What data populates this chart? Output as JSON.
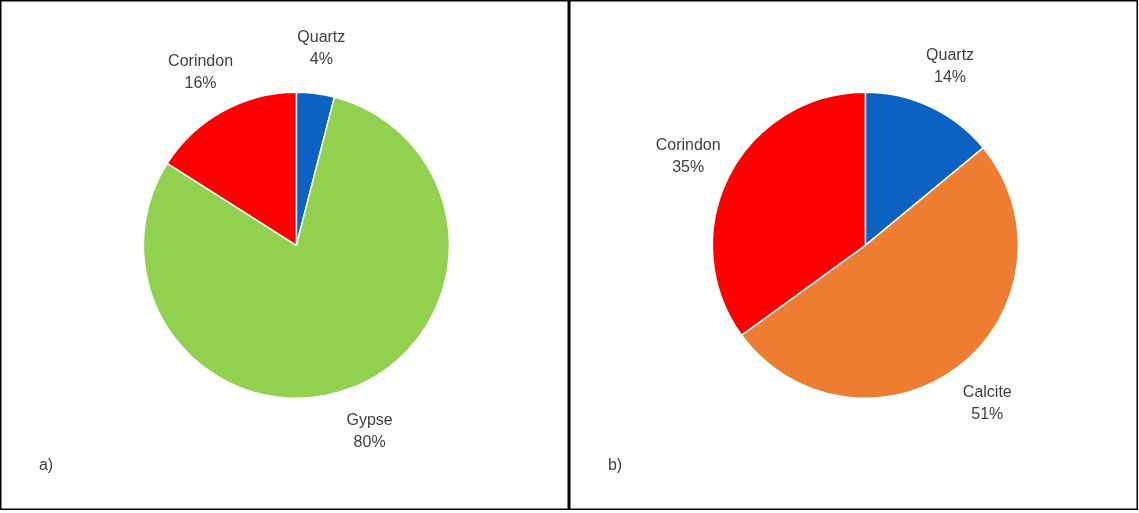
{
  "chart_data": [
    {
      "type": "pie",
      "categories": [
        "Quartz",
        "Gypse",
        "Corindon"
      ],
      "values": [
        4,
        80,
        16
      ],
      "colors": [
        "#0b62c1",
        "#92d050",
        "#ff0000"
      ],
      "value_labels": [
        "4%",
        "80%",
        "16%"
      ],
      "annotations": [
        "a)"
      ]
    },
    {
      "type": "pie",
      "categories": [
        "Quartz",
        "Calcite",
        "Corindon"
      ],
      "values": [
        14,
        51,
        35
      ],
      "colors": [
        "#0b62c1",
        "#ed7d31",
        "#ff0000"
      ],
      "value_labels": [
        "14%",
        "51%",
        "35%"
      ],
      "annotations": [
        "b)"
      ]
    }
  ]
}
